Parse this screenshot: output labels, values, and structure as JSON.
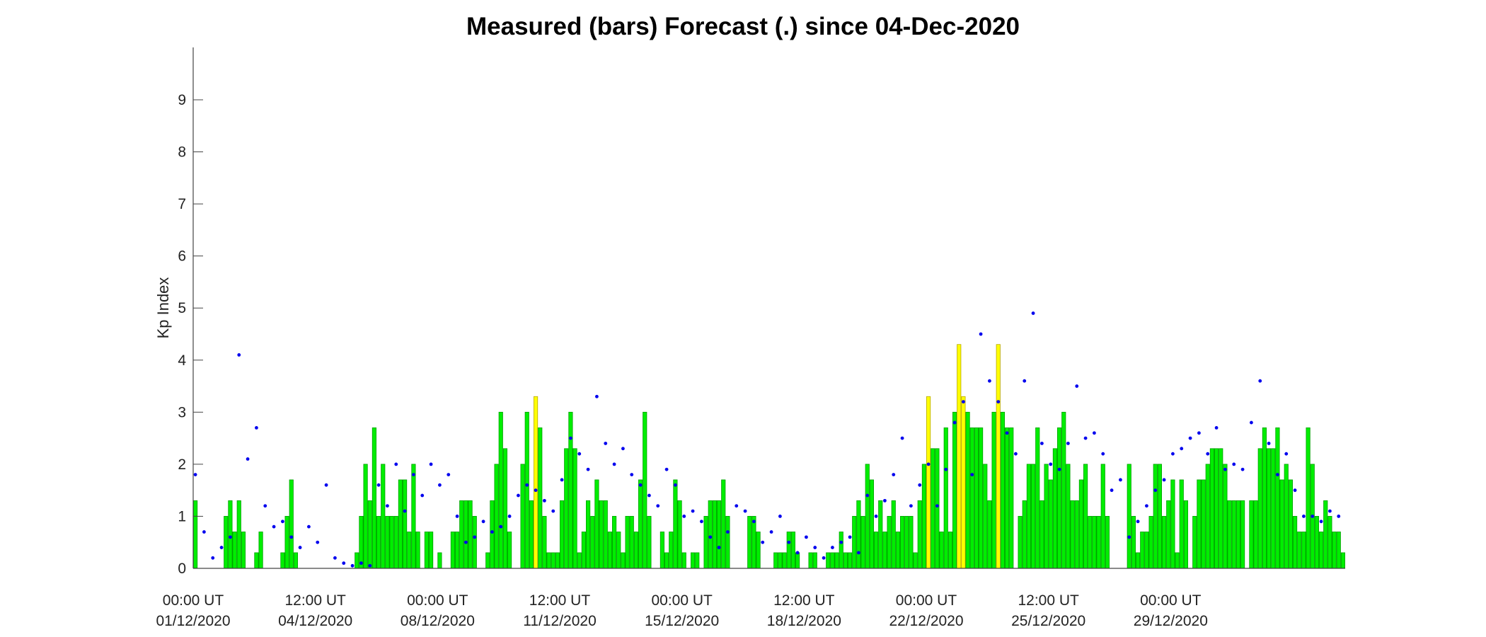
{
  "chart_data": {
    "type": "bar",
    "title": "Measured (bars) Forecast (.) since 04-Dec-2020",
    "xlabel": "",
    "ylabel": "Kp Index",
    "ylim": [
      0,
      10
    ],
    "yticks": [
      0,
      1,
      2,
      3,
      4,
      5,
      6,
      7,
      8,
      9
    ],
    "xlim_3h_intervals": [
      0,
      264
    ],
    "xtick_labels": [
      {
        "time": "00:00 UT",
        "date": "01/12/2020",
        "pos": 0
      },
      {
        "time": "12:00 UT",
        "date": "04/12/2020",
        "pos": 28
      },
      {
        "time": "00:00 UT",
        "date": "08/12/2020",
        "pos": 56
      },
      {
        "time": "12:00 UT",
        "date": "11/12/2020",
        "pos": 84
      },
      {
        "time": "00:00 UT",
        "date": "15/12/2020",
        "pos": 112
      },
      {
        "time": "12:00 UT",
        "date": "18/12/2020",
        "pos": 140
      },
      {
        "time": "00:00 UT",
        "date": "22/12/2020",
        "pos": 168
      },
      {
        "time": "12:00 UT",
        "date": "25/12/2020",
        "pos": 196
      },
      {
        "time": "00:00 UT",
        "date": "29/12/2020",
        "pos": 224
      }
    ],
    "colors": {
      "measured": "#00ee00",
      "measured_storm": "#ffff00",
      "forecast": "#0000ee",
      "axis": "#444444"
    },
    "storm_threshold": 3.1,
    "series": [
      {
        "kind": "measured_bars",
        "values": [
          1.3,
          0,
          0,
          0,
          0,
          0,
          0,
          1,
          1.3,
          0.7,
          1.3,
          0.7,
          0,
          0,
          0.3,
          0.7,
          0,
          0,
          0,
          0,
          0.3,
          1,
          1.7,
          0.3,
          0,
          0,
          0,
          0,
          0,
          0,
          0,
          0,
          0,
          0,
          0,
          0,
          0,
          0.3,
          1,
          2,
          1.3,
          2.7,
          1,
          2,
          1,
          1,
          1,
          1.7,
          1.7,
          0.7,
          2,
          0.7,
          0,
          0.7,
          0.7,
          0,
          0.3,
          0,
          0,
          0.7,
          0.7,
          1.3,
          1.3,
          1.3,
          1,
          0,
          0,
          0.3,
          1.3,
          2,
          3,
          2.3,
          0.7,
          0,
          0,
          2,
          3,
          1.3,
          3.3,
          2.7,
          1,
          0.3,
          0.3,
          0.3,
          1.3,
          2.3,
          3,
          2.3,
          0.3,
          0.7,
          1.3,
          1,
          1.7,
          1.3,
          1.3,
          0.7,
          1,
          0.7,
          0.3,
          1,
          1,
          0.7,
          1.7,
          3,
          1,
          0,
          0,
          0.7,
          0.3,
          0.7,
          1.7,
          1.3,
          0.3,
          0,
          0.3,
          0.3,
          0,
          1,
          1.3,
          1.3,
          1.3,
          1.7,
          1,
          0,
          0,
          0,
          0,
          1,
          1,
          0.7,
          0,
          0,
          0,
          0.3,
          0.3,
          0.3,
          0.7,
          0.7,
          0.3,
          0,
          0,
          0.3,
          0.3,
          0,
          0,
          0.3,
          0.3,
          0.3,
          0.7,
          0.3,
          0.3,
          1,
          1.3,
          1,
          2,
          1.7,
          0.7,
          1.3,
          0.7,
          1,
          1.3,
          0.7,
          1,
          1,
          1,
          0.3,
          1.3,
          2,
          3.3,
          2.3,
          2.3,
          0.7,
          2.7,
          0.7,
          3,
          4.3,
          3.3,
          3,
          2.7,
          2.7,
          2.7,
          2,
          1.3,
          3,
          4.3,
          3,
          2.7,
          2.7,
          0,
          1,
          1.3,
          2,
          2,
          2.7,
          1.3,
          2,
          1.7,
          2.3,
          2.7,
          3,
          2,
          1.3,
          1.3,
          1.7,
          2,
          1,
          1,
          1,
          2,
          1,
          0,
          0,
          0,
          0,
          2,
          1,
          0.3,
          0.7,
          0.7,
          1,
          2,
          2,
          1,
          1.3,
          1.7,
          0.3,
          1.7,
          1.3,
          0,
          1,
          1.7,
          1.7,
          2,
          2.3,
          2.3,
          2.3,
          2,
          1.3,
          1.3,
          1.3,
          1.3,
          0,
          1.3,
          1.3,
          2.3,
          2.7,
          2.3,
          2.3,
          2.7,
          1.7,
          2,
          1.7,
          1,
          0.7,
          0.7,
          2.7,
          2,
          1,
          0.7,
          1.3,
          1,
          0.7,
          0.7,
          0.3
        ]
      },
      {
        "kind": "forecast_points",
        "x": [
          0,
          2,
          4,
          6,
          8,
          10,
          12,
          14,
          16,
          18,
          20,
          22,
          24,
          26,
          28,
          30,
          32,
          34,
          36,
          38,
          40,
          42,
          44,
          46,
          48,
          50,
          52,
          54,
          56,
          58,
          60,
          62,
          64,
          66,
          68,
          70,
          72,
          74,
          76,
          78,
          80,
          82,
          84,
          86,
          88,
          90,
          92,
          94,
          96,
          98,
          100,
          102,
          104,
          106,
          108,
          110,
          112,
          114,
          116,
          118,
          120,
          122,
          124,
          126,
          128,
          130,
          132,
          134,
          136,
          138,
          140,
          142,
          144,
          146,
          148,
          150,
          152,
          154,
          156,
          158,
          160,
          162,
          164,
          166,
          168,
          170,
          172,
          174,
          176,
          178,
          180,
          182,
          184,
          186,
          188,
          190,
          192,
          194,
          196,
          198,
          200,
          202,
          204,
          206,
          208,
          210,
          212,
          214,
          216,
          218,
          220,
          222,
          224,
          226,
          228,
          230,
          232,
          234,
          236,
          238,
          240,
          242,
          244,
          246,
          248,
          250,
          252,
          254,
          256,
          258,
          260,
          262
        ],
        "y": [
          1.8,
          0.7,
          0.2,
          0.4,
          0.6,
          4.1,
          2.1,
          2.7,
          1.2,
          0.8,
          0.9,
          0.6,
          0.4,
          0.8,
          0.5,
          1.6,
          0.2,
          0.1,
          0.05,
          0.1,
          0.05,
          1.6,
          1.2,
          2.0,
          1.1,
          1.8,
          1.4,
          2.0,
          1.6,
          1.8,
          1.0,
          0.5,
          0.6,
          0.9,
          0.7,
          0.8,
          1.0,
          1.4,
          1.6,
          1.5,
          1.3,
          1.1,
          1.7,
          2.5,
          2.2,
          1.9,
          3.3,
          2.4,
          2.0,
          2.3,
          1.8,
          1.6,
          1.4,
          1.2,
          1.9,
          1.6,
          1.0,
          1.1,
          0.9,
          0.6,
          0.4,
          0.7,
          1.2,
          1.1,
          0.9,
          0.5,
          0.7,
          1.0,
          0.5,
          0.3,
          0.6,
          0.4,
          0.2,
          0.4,
          0.5,
          0.6,
          0.3,
          1.4,
          1.0,
          1.3,
          1.8,
          2.5,
          1.2,
          1.6,
          2.0,
          1.2,
          1.9,
          2.8,
          3.2,
          1.8,
          4.5,
          3.6,
          3.2,
          2.6,
          2.2,
          3.6,
          4.9,
          2.4,
          2.0,
          1.9,
          2.4,
          3.5,
          2.5,
          2.6,
          2.2,
          1.5,
          1.7,
          0.6,
          0.9,
          1.2,
          1.5,
          1.7,
          2.2,
          2.3,
          2.5,
          2.6,
          2.2,
          2.7,
          1.9,
          2.0,
          1.9,
          2.8,
          3.6,
          2.4,
          1.8,
          2.2,
          1.5,
          1.0,
          1.0,
          0.9,
          1.1,
          1.0
        ]
      }
    ]
  }
}
